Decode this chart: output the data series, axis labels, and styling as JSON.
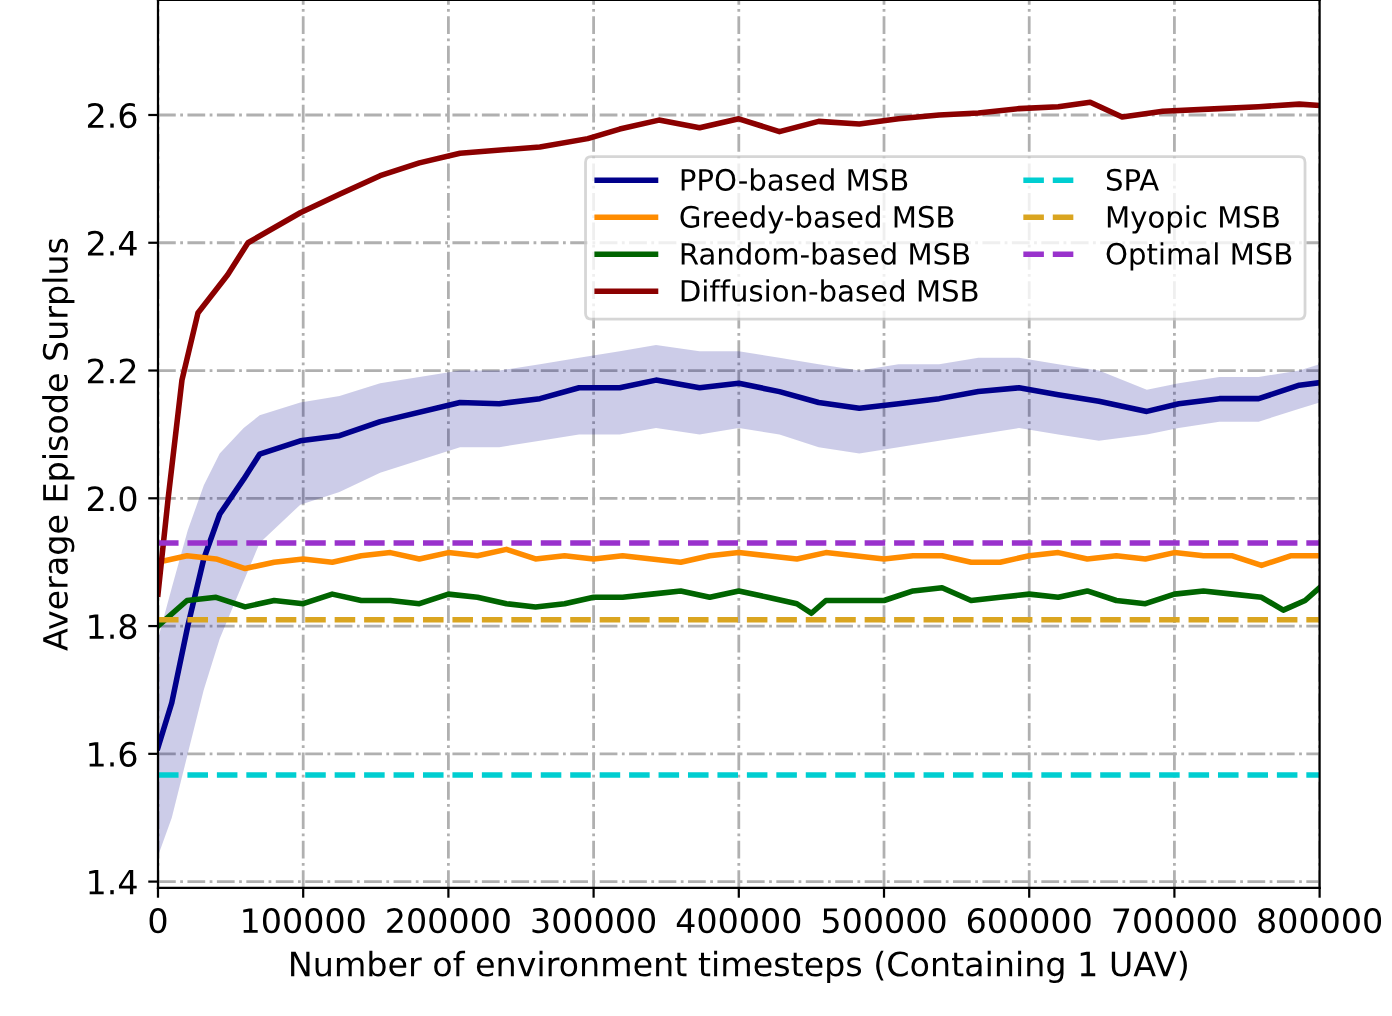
{
  "chart_data": {
    "type": "line",
    "xlabel": "Number of environment timesteps (Containing 1 UAV)",
    "ylabel": "Average Episode Surplus",
    "xlim": [
      0,
      800000
    ],
    "ylim": [
      1.39,
      2.78
    ],
    "xticks": [
      0,
      100000,
      200000,
      300000,
      400000,
      500000,
      600000,
      700000,
      800000
    ],
    "yticks": [
      1.4,
      1.6,
      1.8,
      {
        "value": 2.0,
        "label": "2.0"
      },
      2.2,
      2.4,
      2.6
    ],
    "grid": true,
    "legend": "top right",
    "marker": "none",
    "series": [
      {
        "name": "PPO-based MSB",
        "color": "#00008b",
        "line_style": "solid",
        "x": [
          0,
          9500,
          20500,
          31500,
          42500,
          59000,
          70000,
          98000,
          125000,
          153000,
          208000,
          235000,
          263000,
          290000,
          318000,
          343000,
          373000,
          400000,
          428000,
          455000,
          483000,
          510000,
          538000,
          565000,
          593000,
          620000,
          648000,
          681000,
          703000,
          731000,
          758000,
          786000,
          800000
        ],
        "values": [
          1.61,
          1.68,
          1.8,
          1.905,
          1.975,
          2.03,
          2.069,
          2.09,
          2.098,
          2.12,
          2.15,
          2.148,
          2.156,
          2.173,
          2.173,
          2.185,
          2.173,
          2.18,
          2.167,
          2.15,
          2.141,
          2.148,
          2.156,
          2.167,
          2.173,
          2.162,
          2.152,
          2.136,
          2.148,
          2.156,
          2.156,
          2.177,
          2.181
        ],
        "lower": [
          1.44,
          1.5,
          1.6,
          1.7,
          1.78,
          1.87,
          1.93,
          1.99,
          2.01,
          2.04,
          2.08,
          2.08,
          2.09,
          2.1,
          2.1,
          2.11,
          2.1,
          2.11,
          2.1,
          2.08,
          2.07,
          2.08,
          2.09,
          2.1,
          2.11,
          2.1,
          2.09,
          2.1,
          2.11,
          2.12,
          2.12,
          2.14,
          2.15
        ],
        "upper": [
          1.78,
          1.86,
          1.95,
          2.02,
          2.07,
          2.11,
          2.13,
          2.15,
          2.16,
          2.18,
          2.2,
          2.2,
          2.21,
          2.22,
          2.23,
          2.24,
          2.23,
          2.23,
          2.22,
          2.21,
          2.2,
          2.21,
          2.21,
          2.22,
          2.22,
          2.21,
          2.2,
          2.17,
          2.18,
          2.19,
          2.19,
          2.2,
          2.21
        ]
      },
      {
        "name": "Greedy-based MSB",
        "color": "#ff8c00",
        "line_style": "solid",
        "x": [
          0,
          20000,
          40000,
          60000,
          80000,
          100000,
          120000,
          140000,
          160000,
          180000,
          200000,
          220000,
          240000,
          260000,
          280000,
          300000,
          320000,
          340000,
          360000,
          380000,
          400000,
          420000,
          440000,
          460000,
          480000,
          500000,
          520000,
          540000,
          560000,
          580000,
          600000,
          620000,
          640000,
          660000,
          680000,
          700000,
          720000,
          740000,
          760000,
          780000,
          800000
        ],
        "values": [
          1.9,
          1.91,
          1.905,
          1.89,
          1.9,
          1.905,
          1.9,
          1.91,
          1.915,
          1.905,
          1.915,
          1.91,
          1.92,
          1.905,
          1.91,
          1.905,
          1.91,
          1.905,
          1.9,
          1.91,
          1.915,
          1.91,
          1.905,
          1.915,
          1.91,
          1.905,
          1.91,
          1.91,
          1.9,
          1.9,
          1.91,
          1.915,
          1.905,
          1.91,
          1.905,
          1.915,
          1.91,
          1.91,
          1.895,
          1.91,
          1.91
        ]
      },
      {
        "name": "Random-based MSB",
        "color": "#006400",
        "line_style": "solid",
        "x": [
          0,
          20000,
          40000,
          60000,
          80000,
          100000,
          120000,
          140000,
          160000,
          180000,
          200000,
          220000,
          240000,
          260000,
          280000,
          300000,
          320000,
          340000,
          360000,
          380000,
          400000,
          420000,
          440000,
          450000,
          460000,
          480000,
          500000,
          520000,
          540000,
          560000,
          580000,
          600000,
          620000,
          640000,
          660000,
          680000,
          700000,
          720000,
          740000,
          760000,
          775000,
          790000,
          800000
        ],
        "values": [
          1.8,
          1.84,
          1.845,
          1.83,
          1.84,
          1.835,
          1.85,
          1.84,
          1.84,
          1.835,
          1.85,
          1.845,
          1.835,
          1.83,
          1.835,
          1.845,
          1.845,
          1.85,
          1.855,
          1.845,
          1.855,
          1.845,
          1.835,
          1.82,
          1.84,
          1.84,
          1.84,
          1.855,
          1.86,
          1.84,
          1.845,
          1.85,
          1.845,
          1.855,
          1.84,
          1.835,
          1.85,
          1.855,
          1.85,
          1.845,
          1.825,
          1.84,
          1.86
        ]
      },
      {
        "name": "Diffusion-based MSB",
        "color": "#8b0000",
        "line_style": "solid",
        "x": [
          0,
          7000,
          16500,
          27500,
          48000,
          62000,
          98000,
          125000,
          153000,
          180000,
          208000,
          263000,
          296000,
          318000,
          345000,
          373000,
          400000,
          428000,
          455000,
          483000,
          510000,
          538000,
          565000,
          593000,
          620000,
          642000,
          664000,
          692000,
          731000,
          758000,
          786000,
          800000
        ],
        "values": [
          1.85,
          2.0,
          2.185,
          2.29,
          2.35,
          2.4,
          2.447,
          2.476,
          2.505,
          2.525,
          2.54,
          2.55,
          2.563,
          2.578,
          2.592,
          2.58,
          2.594,
          2.574,
          2.59,
          2.586,
          2.594,
          2.6,
          2.603,
          2.61,
          2.613,
          2.62,
          2.597,
          2.606,
          2.61,
          2.613,
          2.617,
          2.615
        ]
      },
      {
        "name": "SPA",
        "color": "#00ced1",
        "line_style": "dashed",
        "x": [
          0,
          800000
        ],
        "values": [
          1.567,
          1.567
        ]
      },
      {
        "name": "Myopic MSB",
        "color": "#daa520",
        "line_style": "dashed",
        "x": [
          0,
          800000
        ],
        "values": [
          1.81,
          1.81
        ]
      },
      {
        "name": "Optimal MSB",
        "color": "#9932cc",
        "line_style": "dashed",
        "x": [
          0,
          800000
        ],
        "values": [
          1.93,
          1.93
        ]
      }
    ]
  }
}
